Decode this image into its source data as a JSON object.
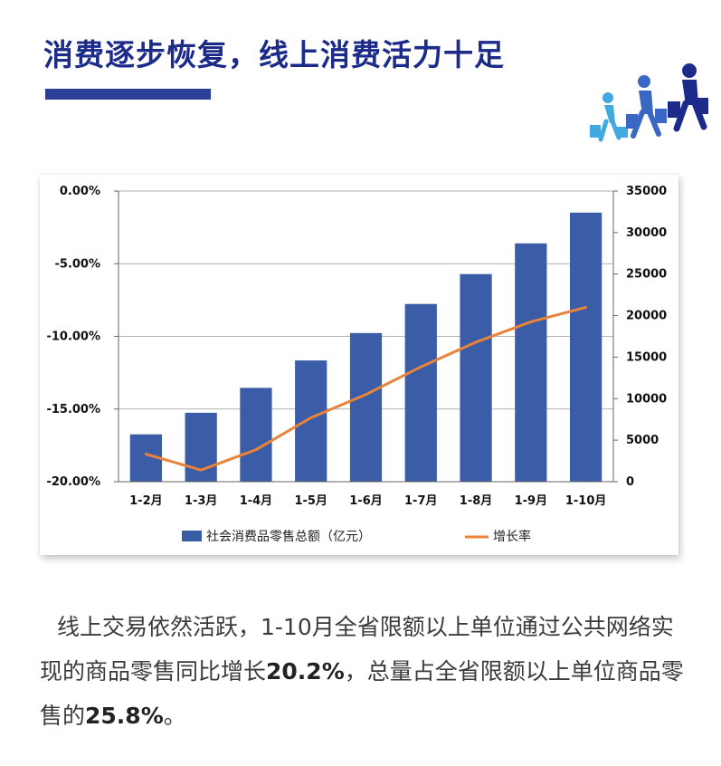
{
  "page": {
    "heading": "消费逐步恢复，线上消费活力十足",
    "paragraph": {
      "part1": "线上交易依然活跃，1-10月全省限额以上单位通过公共网络实现的商品零售同比增长",
      "highlight1": "20.2%",
      "part2": "，总量占全省限额以上单位商品零售的",
      "highlight2": "25.8%",
      "part3": "。"
    },
    "icon": "people-carrying-shopping-bags-icon",
    "colors": {
      "heading": "#1c2b8a",
      "people_light": "#3fa9e0",
      "people_mid": "#3a66c4",
      "people_dark": "#1c2b8a"
    }
  },
  "chart_data": {
    "type": "bar",
    "categories": [
      "1-2月",
      "1-3月",
      "1-4月",
      "1-5月",
      "1-6月",
      "1-7月",
      "1-8月",
      "1-9月",
      "1-10月"
    ],
    "series": [
      {
        "name": "社会消费品零售总额（亿元）",
        "type": "bar",
        "axis": "right",
        "color": "#3b5ca6",
        "values": [
          5700,
          8300,
          11300,
          14600,
          17900,
          21400,
          25000,
          28700,
          32400
        ]
      },
      {
        "name": "增长率",
        "type": "line",
        "axis": "left",
        "color": "#e9833a",
        "values": [
          -18.1,
          -19.2,
          -17.8,
          -15.6,
          -14.0,
          -12.1,
          -10.4,
          -9.0,
          -8.0
        ]
      }
    ],
    "left_axis": {
      "ticks": [
        "0.00%",
        "-5.00%",
        "-10.00%",
        "-15.00%",
        "-20.00%"
      ],
      "range": [
        -20,
        0
      ]
    },
    "right_axis": {
      "ticks": [
        "35000",
        "30000",
        "25000",
        "20000",
        "15000",
        "10000",
        "5000",
        "0"
      ],
      "range": [
        0,
        35000
      ]
    },
    "grid": true,
    "legend_position": "bottom"
  }
}
